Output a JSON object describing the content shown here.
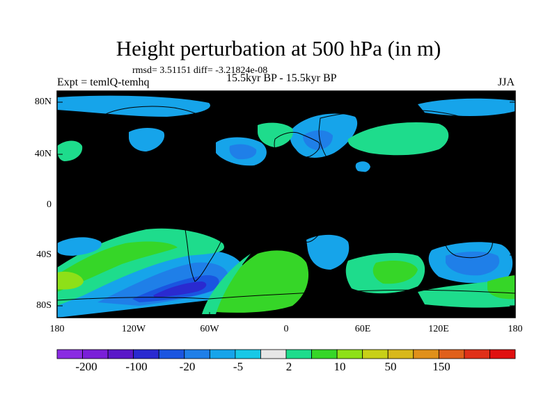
{
  "title": "Height perturbation at 500 hPa (in m)",
  "stats": "rmsd= 3.51151 diff= -3.21824e-08",
  "expt": "Expt = temlQ-temhq",
  "period": "15.5kyr BP - 15.5kyr BP",
  "season": "JJA",
  "lat_labels": [
    "80N",
    "40N",
    "0",
    "40S",
    "80S"
  ],
  "lon_labels": [
    "180",
    "120W",
    "60W",
    "0",
    "60E",
    "120E",
    "180"
  ],
  "colorbar": {
    "colors": [
      "#8a2be2",
      "#7a1fd8",
      "#5a18c8",
      "#2a2ad0",
      "#1a55e0",
      "#1f7fe8",
      "#16a4ea",
      "#18c8e6",
      "#e6e6e6",
      "#1edc8c",
      "#36d628",
      "#8ee018",
      "#c8d018",
      "#d8b81a",
      "#e0901a",
      "#e0601a",
      "#e03018",
      "#e01010"
    ],
    "labels": [
      "-200",
      "-100",
      "-20",
      "-5",
      "2",
      "10",
      "50",
      "150"
    ]
  },
  "colors": {
    "background": "#e6e6e6",
    "weak_negative": "#18c8e6",
    "negative": "#16a4ea",
    "strong_negative": "#1f7fe8",
    "very_strong_negative": "#1a55e0",
    "extreme_negative": "#2a2ad0",
    "positive": "#1edc8c",
    "strong_positive": "#36d628",
    "very_strong_positive": "#8ee018",
    "extreme_positive": "#c8d018"
  }
}
